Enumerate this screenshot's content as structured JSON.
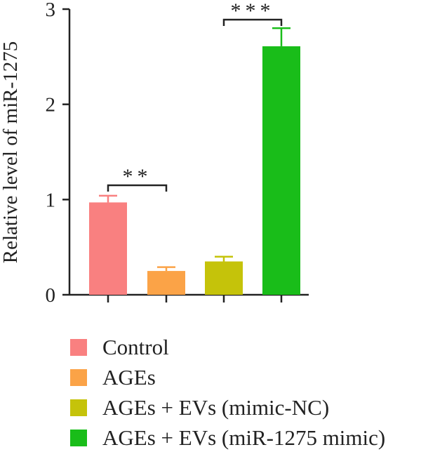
{
  "chart_data": {
    "type": "bar",
    "title": "",
    "xlabel": "",
    "ylabel": "Relative level of miR-1275",
    "ylim": [
      0,
      3
    ],
    "yticks": [
      "0",
      "1",
      "2",
      "3"
    ],
    "grid": false,
    "legend_position": "bottom",
    "categories": [
      "Control",
      "AGEs",
      "AGEs + EVs (mimic-NC)",
      "AGEs + EVs (miR-1275 mimic)"
    ],
    "values": [
      0.97,
      0.25,
      0.35,
      2.61
    ],
    "errors": [
      0.07,
      0.04,
      0.05,
      0.19
    ],
    "colors": [
      "#f98080",
      "#fba347",
      "#c5c30a",
      "#19bd19"
    ],
    "significance": [
      {
        "between": [
          0,
          1
        ],
        "label": "**"
      },
      {
        "between": [
          2,
          3
        ],
        "label": "***"
      }
    ]
  }
}
